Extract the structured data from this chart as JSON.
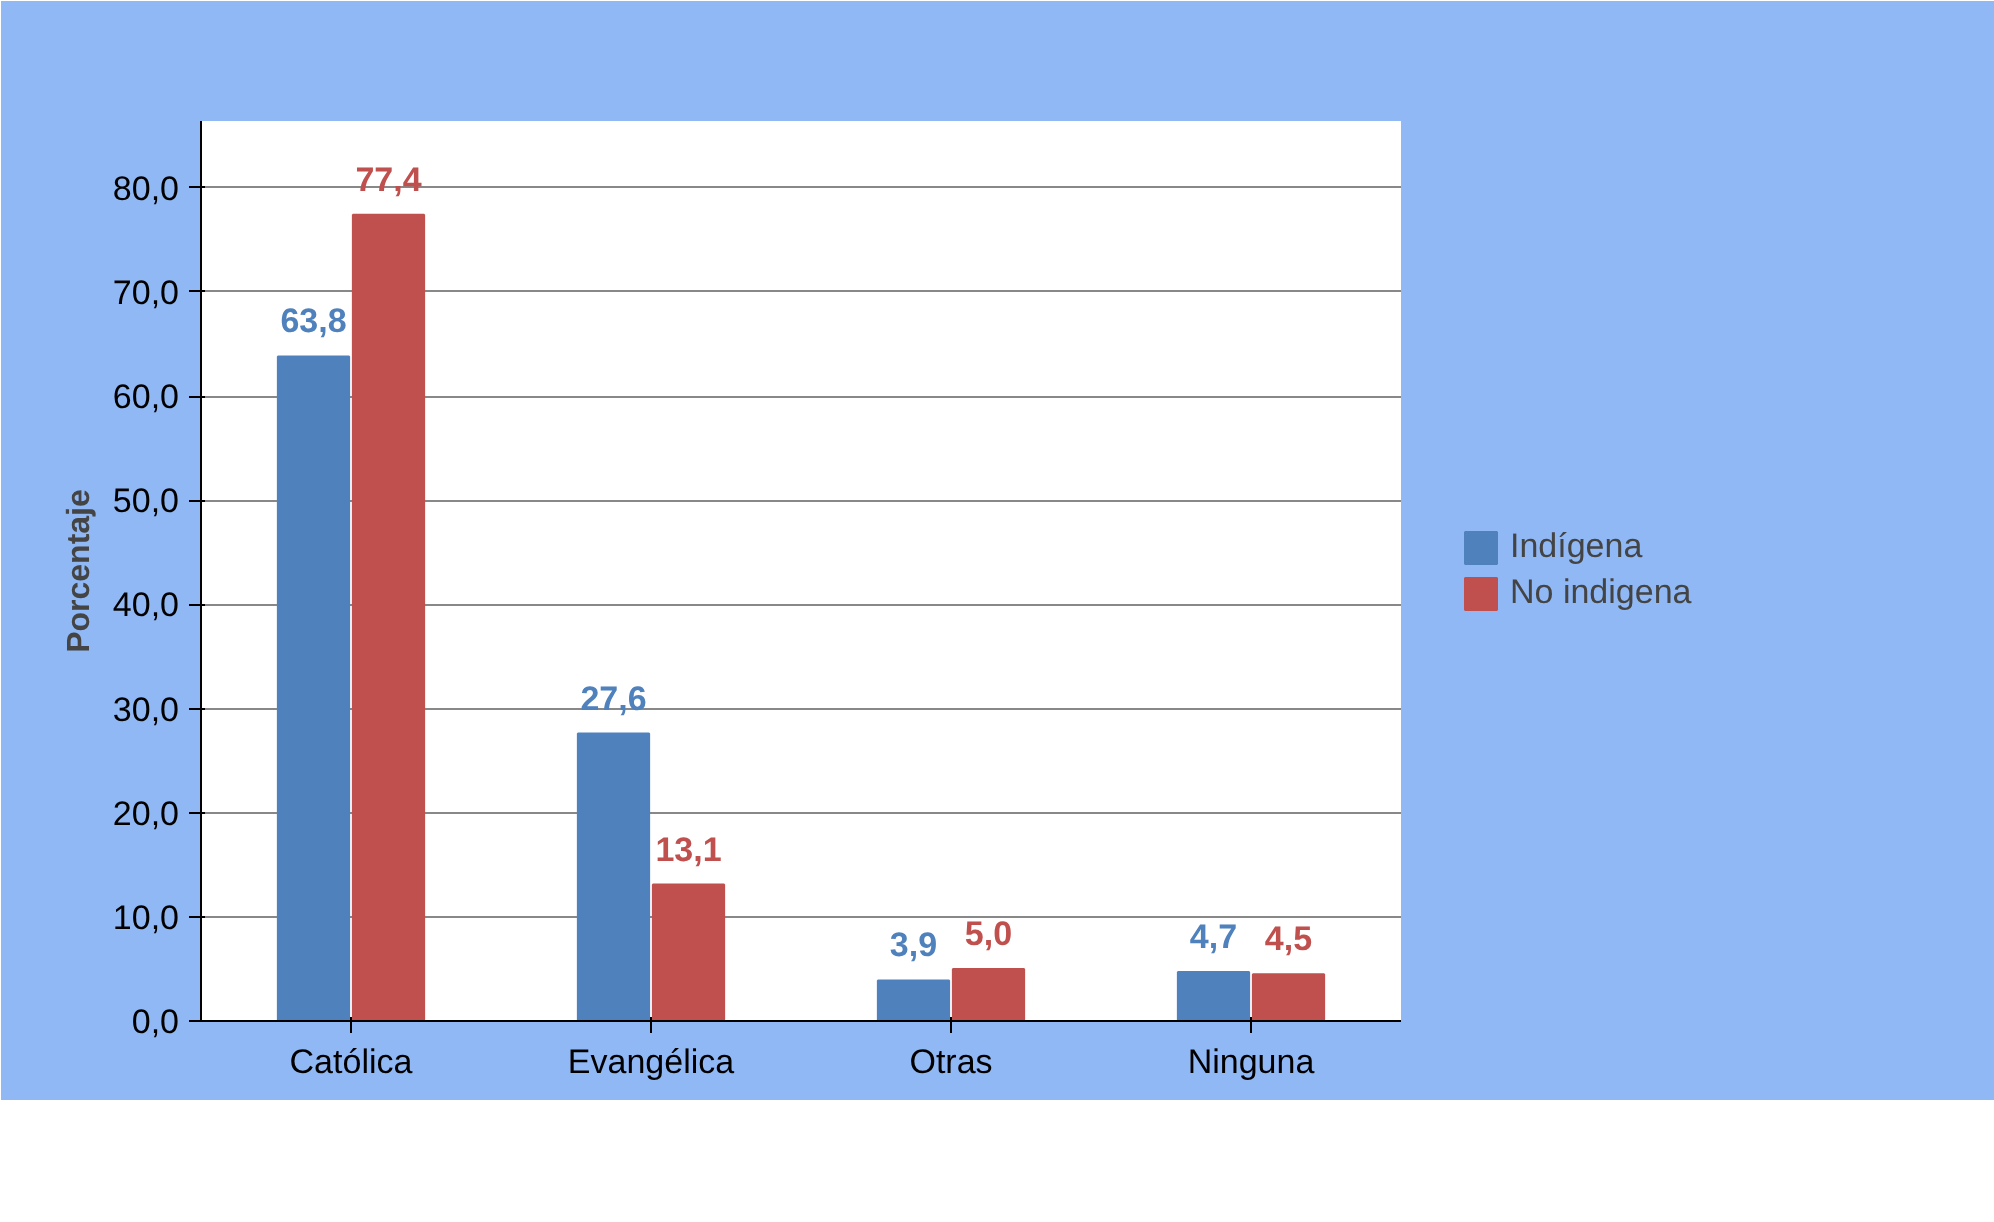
{
  "chart_data": {
    "type": "bar",
    "ylabel": "Porcentaje",
    "categories": [
      "Católica",
      "Evangélica",
      "Otras",
      "Ninguna"
    ],
    "series": [
      {
        "name": "Indígena",
        "color": "#4f81bd",
        "values": [
          63.8,
          27.6,
          3.9,
          4.7
        ],
        "value_labels": [
          "63,8",
          "27,6",
          "3,9",
          "4,7"
        ]
      },
      {
        "name": "No indigena",
        "color": "#c0504d",
        "values": [
          77.4,
          13.1,
          5.0,
          4.5
        ],
        "value_labels": [
          "77,4",
          "13,1",
          "5,0",
          "4,5"
        ]
      }
    ],
    "ylim": [
      0,
      80
    ],
    "yticks": [
      {
        "value": 0,
        "label": "0,0"
      },
      {
        "value": 10,
        "label": "10,0"
      },
      {
        "value": 20,
        "label": "20,0"
      },
      {
        "value": 30,
        "label": "30,0"
      },
      {
        "value": 40,
        "label": "40,0"
      },
      {
        "value": 50,
        "label": "50,0"
      },
      {
        "value": 60,
        "label": "60,0"
      },
      {
        "value": 70,
        "label": "70,0"
      },
      {
        "value": 80,
        "label": "80,0"
      }
    ],
    "grid": "y",
    "legend": "right"
  }
}
